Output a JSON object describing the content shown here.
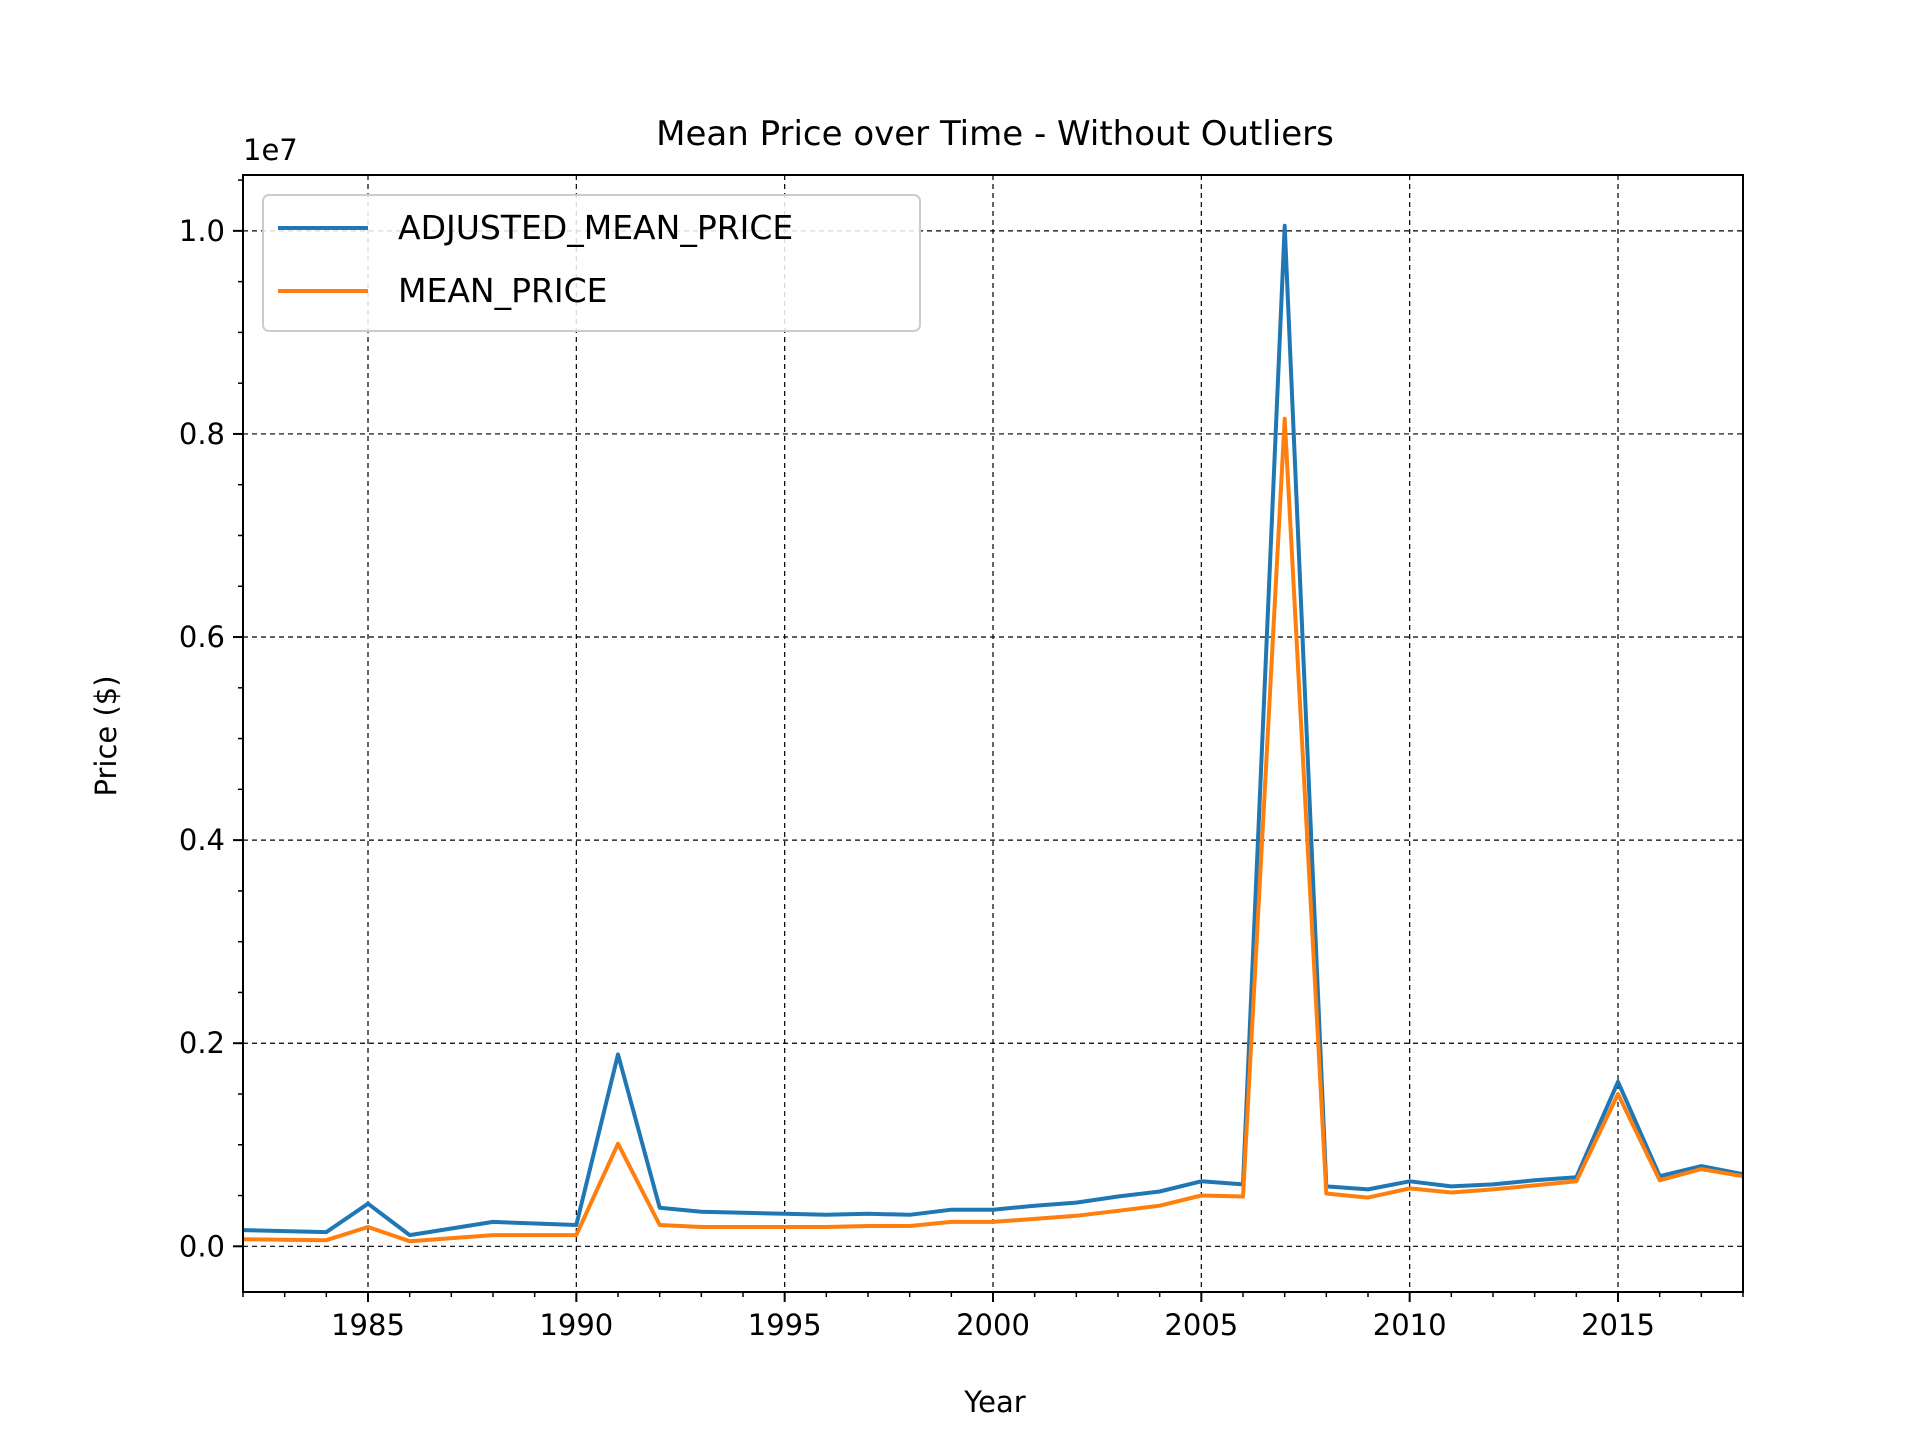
{
  "chart_data": {
    "type": "line",
    "title": "Mean Price over Time - Without Outliers",
    "xlabel": "Year",
    "ylabel": "Price ($)",
    "y_offset_label": "1e7",
    "y_scale": 10000000,
    "xlim": [
      1982,
      2018
    ],
    "ylim": [
      -0.045,
      1.055
    ],
    "x_ticks": [
      1985,
      1990,
      1995,
      2000,
      2005,
      2010,
      2015
    ],
    "x_tick_labels": [
      "1985",
      "1990",
      "1995",
      "2000",
      "2005",
      "2010",
      "2015"
    ],
    "y_ticks": [
      0.0,
      0.2,
      0.4,
      0.6,
      0.8,
      1.0
    ],
    "y_tick_labels": [
      "0.0",
      "0.2",
      "0.4",
      "0.6",
      "0.8",
      "1.0"
    ],
    "grid": true,
    "legend_position": "top-left",
    "x": [
      1982,
      1984,
      1985,
      1986,
      1988,
      1990,
      1991,
      1992,
      1993,
      1994,
      1995,
      1996,
      1997,
      1998,
      1999,
      2000,
      2001,
      2002,
      2003,
      2004,
      2005,
      2006,
      2007,
      2008,
      2009,
      2010,
      2011,
      2012,
      2013,
      2014,
      2015,
      2016,
      2017,
      2018
    ],
    "series": [
      {
        "name": "ADJUSTED_MEAN_PRICE",
        "color": "#1f77b4",
        "values": [
          0.016,
          0.014,
          0.042,
          0.011,
          0.024,
          0.021,
          0.189,
          0.038,
          0.034,
          0.033,
          0.032,
          0.031,
          0.032,
          0.031,
          0.036,
          0.036,
          0.04,
          0.043,
          0.049,
          0.054,
          0.064,
          0.061,
          1.005,
          0.059,
          0.056,
          0.064,
          0.059,
          0.061,
          0.065,
          0.068,
          0.162,
          0.069,
          0.079,
          0.071
        ]
      },
      {
        "name": "MEAN_PRICE",
        "color": "#ff7f0e",
        "values": [
          0.007,
          0.006,
          0.019,
          0.005,
          0.011,
          0.011,
          0.101,
          0.021,
          0.019,
          0.019,
          0.019,
          0.019,
          0.02,
          0.02,
          0.024,
          0.024,
          0.027,
          0.03,
          0.035,
          0.04,
          0.05,
          0.049,
          0.815,
          0.052,
          0.048,
          0.057,
          0.053,
          0.056,
          0.06,
          0.064,
          0.15,
          0.065,
          0.076,
          0.069
        ]
      }
    ]
  }
}
